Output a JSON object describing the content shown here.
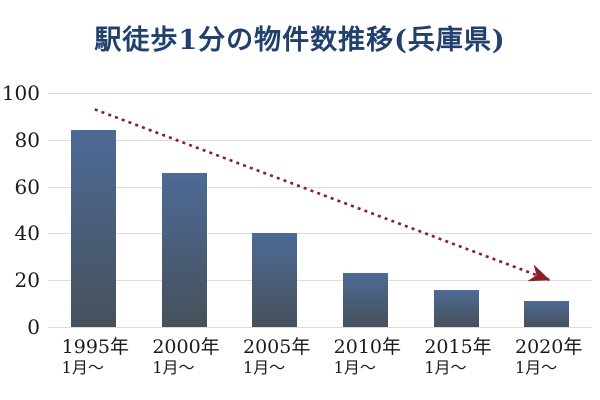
{
  "title": "駅徒歩1分の物件数推移(兵庫県)",
  "chart_data": {
    "type": "bar",
    "title": "駅徒歩1分の物件数推移(兵庫県)",
    "categories": [
      {
        "year": "1995年",
        "sub": "1月～"
      },
      {
        "year": "2000年",
        "sub": "1月～"
      },
      {
        "year": "2005年",
        "sub": "1月～"
      },
      {
        "year": "2010年",
        "sub": "1月～"
      },
      {
        "year": "2015年",
        "sub": "1月～"
      },
      {
        "year": "2020年",
        "sub": "1月～"
      }
    ],
    "values": [
      84,
      66,
      40,
      23,
      16,
      11
    ],
    "xlabel": "",
    "ylabel": "",
    "ylim": [
      0,
      100
    ],
    "yticks": [
      0,
      20,
      40,
      60,
      80,
      100
    ],
    "grid": true,
    "legend_position": "none",
    "colors": {
      "title": "#21406e",
      "bar_gradient_top": "#4d6a96",
      "bar_gradient_bottom": "#46515b",
      "gridline": "#dcdcdc",
      "axis_text": "#1a1a1a",
      "trend_arrow": "#871f26"
    },
    "trend_arrow": {
      "style": "dotted",
      "direction": "down-right",
      "start": {
        "x_frac": 0.086,
        "value": 93
      },
      "end": {
        "x_frac": 0.923,
        "value": 20
      }
    }
  }
}
